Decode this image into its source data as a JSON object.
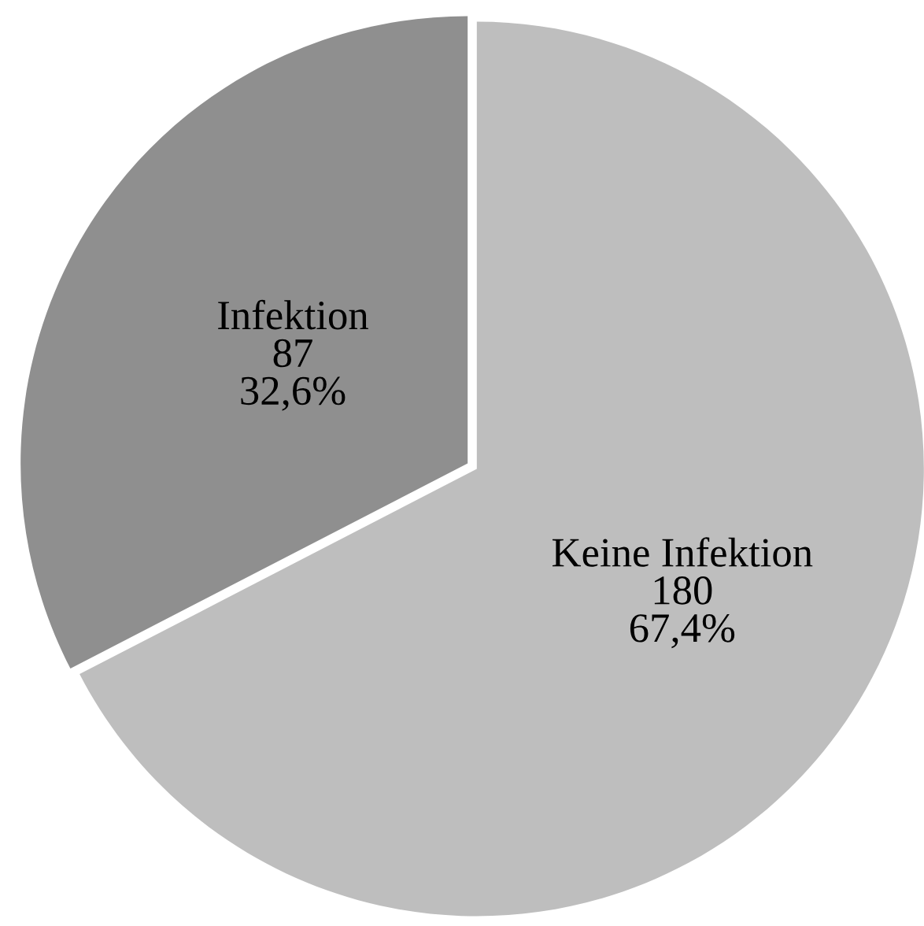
{
  "chart_data": {
    "type": "pie",
    "categories": [
      "Keine Infektion",
      "Infektion"
    ],
    "values": [
      180,
      87
    ],
    "colors": [
      "#bebebe",
      "#8f8f8f"
    ],
    "value_labels": [
      "180\n67,4%",
      "87\n32,6%"
    ]
  }
}
